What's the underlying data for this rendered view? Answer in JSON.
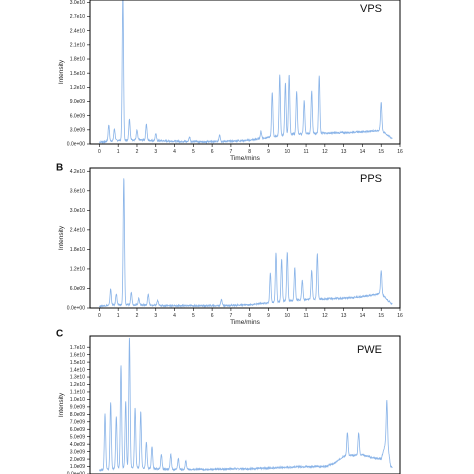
{
  "colors": {
    "trace": "#8ab4e8",
    "frame": "#000000",
    "text": "#222222"
  },
  "chart_data": [
    {
      "type": "line",
      "panel_tag": "",
      "name": "VPS",
      "xlabel": "Time/mins",
      "ylabel": "Intensity",
      "xlim": [
        -0.5,
        16
      ],
      "ylim": [
        0,
        30500000000.0
      ],
      "x_ticks": [
        "0",
        "1",
        "2",
        "3",
        "4",
        "5",
        "6",
        "7",
        "8",
        "9",
        "10",
        "11",
        "12",
        "13",
        "14",
        "15",
        "16"
      ],
      "y_ticks": [
        "0.0e+00",
        "3.0e09",
        "6.0e09",
        "9.0e09",
        "1.2e10",
        "1.5e10",
        "1.8e10",
        "2.1e10",
        "2.4e10",
        "2.7e10",
        "3.0e10"
      ],
      "y_tick_values": [
        0,
        3000000000.0,
        6000000000.0,
        9000000000.0,
        12000000000.0,
        15000000000.0,
        18000000000.0,
        21000000000.0,
        24000000000.0,
        27000000000.0,
        30000000000.0
      ],
      "baseline": [
        [
          0,
          400000000.0
        ],
        [
          1,
          800000000.0
        ],
        [
          2,
          900000000.0
        ],
        [
          3,
          700000000.0
        ],
        [
          4,
          600000000.0
        ],
        [
          5,
          500000000.0
        ],
        [
          6,
          500000000.0
        ],
        [
          7,
          600000000.0
        ],
        [
          8,
          800000000.0
        ],
        [
          9,
          1400000000.0
        ],
        [
          10,
          2000000000.0
        ],
        [
          11,
          2200000000.0
        ],
        [
          12,
          2300000000.0
        ],
        [
          13,
          2400000000.0
        ],
        [
          14,
          2600000000.0
        ],
        [
          15,
          2900000000.0
        ],
        [
          15.5,
          1400000000.0
        ],
        [
          16,
          200000000.0
        ]
      ],
      "peaks": [
        [
          0.5,
          3500000000.0
        ],
        [
          0.8,
          2500000000.0
        ],
        [
          1.25,
          31000000000.0
        ],
        [
          1.6,
          4500000000.0
        ],
        [
          2.0,
          2000000000.0
        ],
        [
          2.5,
          3500000000.0
        ],
        [
          3.0,
          1500000000.0
        ],
        [
          4.8,
          1000000000.0
        ],
        [
          6.4,
          1500000000.0
        ],
        [
          8.6,
          1500000000.0
        ],
        [
          9.2,
          9500000000.0
        ],
        [
          9.6,
          12800000000.0
        ],
        [
          9.9,
          11000000000.0
        ],
        [
          10.1,
          12800000000.0
        ],
        [
          10.5,
          9000000000.0
        ],
        [
          10.9,
          7000000000.0
        ],
        [
          11.3,
          9000000000.0
        ],
        [
          11.7,
          12200000000.0
        ],
        [
          15.0,
          6000000000.0
        ]
      ]
    },
    {
      "type": "line",
      "panel_tag": "B",
      "name": "PPS",
      "xlabel": "Time/mins",
      "ylabel": "Intensity",
      "xlim": [
        -0.5,
        16
      ],
      "ylim": [
        0,
        43000000000.0
      ],
      "x_ticks": [
        "0",
        "1",
        "2",
        "3",
        "4",
        "5",
        "6",
        "7",
        "8",
        "9",
        "10",
        "11",
        "12",
        "13",
        "14",
        "15",
        "16"
      ],
      "y_ticks": [
        "0.0e+00",
        "6.0e09",
        "1.2e10",
        "1.8e10",
        "2.4e10",
        "3.0e10",
        "3.6e10",
        "4.2e10"
      ],
      "y_tick_values": [
        0,
        6000000000.0,
        12000000000.0,
        18000000000.0,
        24000000000.0,
        30000000000.0,
        36000000000.0,
        42000000000.0
      ],
      "baseline": [
        [
          0,
          600000000.0
        ],
        [
          1,
          1000000000.0
        ],
        [
          2,
          1000000000.0
        ],
        [
          3,
          800000000.0
        ],
        [
          4,
          700000000.0
        ],
        [
          5,
          700000000.0
        ],
        [
          6,
          700000000.0
        ],
        [
          7,
          800000000.0
        ],
        [
          8,
          1000000000.0
        ],
        [
          9,
          1600000000.0
        ],
        [
          10,
          2200000000.0
        ],
        [
          11,
          2600000000.0
        ],
        [
          12,
          2800000000.0
        ],
        [
          13,
          3000000000.0
        ],
        [
          14,
          3500000000.0
        ],
        [
          15,
          4500000000.0
        ],
        [
          15.5,
          1500000000.0
        ],
        [
          16,
          300000000.0
        ]
      ],
      "peaks": [
        [
          0.6,
          5000000000.0
        ],
        [
          0.9,
          3500000000.0
        ],
        [
          1.3,
          39000000000.0
        ],
        [
          1.7,
          4000000000.0
        ],
        [
          2.1,
          2000000000.0
        ],
        [
          2.6,
          3500000000.0
        ],
        [
          3.1,
          1500000000.0
        ],
        [
          6.5,
          2000000000.0
        ],
        [
          9.1,
          9000000000.0
        ],
        [
          9.4,
          15000000000.0
        ],
        [
          9.7,
          13000000000.0
        ],
        [
          10.0,
          15000000000.0
        ],
        [
          10.4,
          10000000000.0
        ],
        [
          10.8,
          6000000000.0
        ],
        [
          11.3,
          9000000000.0
        ],
        [
          11.6,
          14000000000.0
        ],
        [
          15.0,
          7000000000.0
        ]
      ]
    },
    {
      "type": "line",
      "panel_tag": "C",
      "name": "PWE",
      "xlabel": "",
      "ylabel": "Intensity",
      "xlim": [
        -0.5,
        16
      ],
      "ylim": [
        0,
        18500000000.0
      ],
      "x_ticks": [],
      "y_ticks": [
        "0.0e+00",
        "1.0e09",
        "2.0e09",
        "3.0e09",
        "4.0e09",
        "5.0e09",
        "6.0e09",
        "7.0e09",
        "8.0e09",
        "9.0e09",
        "1.0e10",
        "1.1e10",
        "1.2e10",
        "1.3e10",
        "1.4e10",
        "1.5e10",
        "1.6e10",
        "1.7e10"
      ],
      "y_tick_values": [
        0,
        1000000000.0,
        2000000000.0,
        3000000000.0,
        4000000000.0,
        5000000000.0,
        6000000000.0,
        7000000000.0,
        8000000000.0,
        9000000000.0,
        10000000000.0,
        11000000000.0,
        12000000000.0,
        13000000000.0,
        14000000000.0,
        15000000000.0,
        16000000000.0,
        17000000000.0
      ],
      "baseline": [
        [
          0,
          500000000.0
        ],
        [
          1,
          800000000.0
        ],
        [
          2,
          900000000.0
        ],
        [
          3,
          700000000.0
        ],
        [
          4,
          600000000.0
        ],
        [
          5,
          600000000.0
        ],
        [
          6,
          600000000.0
        ],
        [
          7,
          700000000.0
        ],
        [
          8,
          700000000.0
        ],
        [
          9,
          800000000.0
        ],
        [
          10,
          900000000.0
        ],
        [
          11,
          1000000000.0
        ],
        [
          12,
          1000000000.0
        ],
        [
          12.5,
          1400000000.0
        ],
        [
          13,
          2400000000.0
        ],
        [
          14,
          2600000000.0
        ],
        [
          14.5,
          2200000000.0
        ],
        [
          15,
          2000000000.0
        ],
        [
          15.3,
          4800000000.0
        ],
        [
          15.5,
          1000000000.0
        ],
        [
          16,
          300000000.0
        ]
      ],
      "peaks": [
        [
          0.3,
          7500000000.0
        ],
        [
          0.6,
          9000000000.0
        ],
        [
          0.9,
          7000000000.0
        ],
        [
          1.15,
          13800000000.0
        ],
        [
          1.4,
          9000000000.0
        ],
        [
          1.6,
          17500000000.0
        ],
        [
          1.9,
          8000000000.0
        ],
        [
          2.2,
          7500000000.0
        ],
        [
          2.5,
          3500000000.0
        ],
        [
          2.8,
          3000000000.0
        ],
        [
          3.3,
          2000000000.0
        ],
        [
          3.8,
          2000000000.0
        ],
        [
          4.2,
          1500000000.0
        ],
        [
          4.6,
          1200000000.0
        ],
        [
          13.2,
          3200000000.0
        ],
        [
          13.8,
          3000000000.0
        ],
        [
          15.3,
          5200000000.0
        ]
      ]
    }
  ]
}
